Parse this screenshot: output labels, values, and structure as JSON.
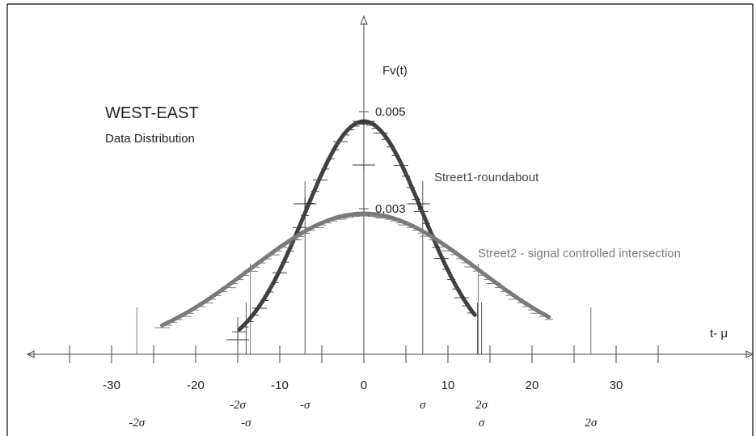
{
  "title": "WEST-EAST",
  "subtitle": "Data Distribution",
  "ylabel": "Fv(t)",
  "xlabel": "t- μ",
  "colors": {
    "frame": "#000000",
    "axis": "#444444",
    "street1": "#404040",
    "street2": "#7a7a7a",
    "text": "#222222"
  },
  "chart_data": {
    "type": "line",
    "xlim": [
      -43,
      46
    ],
    "ylim": [
      -0.0003,
      0.0065
    ],
    "x_ticks": [
      -35,
      -30,
      -25,
      -20,
      -15,
      -10,
      -5,
      0,
      5,
      10,
      15,
      20,
      25,
      30,
      35
    ],
    "x_tick_labels": [
      {
        "x": -30,
        "label": "-30"
      },
      {
        "x": -20,
        "label": "-20"
      },
      {
        "x": -10,
        "label": "-10"
      },
      {
        "x": 0,
        "label": "0"
      },
      {
        "x": 10,
        "label": "10"
      },
      {
        "x": 20,
        "label": "20"
      },
      {
        "x": 30,
        "label": "30"
      }
    ],
    "y_labels": [
      {
        "y": 0.005,
        "label": "0.005"
      },
      {
        "y": 0.003,
        "label": "0,003"
      }
    ],
    "sigma_labels_row1": [
      {
        "x": -15,
        "label": "-2σ"
      },
      {
        "x": -7,
        "label": "-σ"
      },
      {
        "x": 7,
        "label": "σ"
      },
      {
        "x": 14,
        "label": "2σ"
      }
    ],
    "sigma_labels_row2": [
      {
        "x": -27,
        "label": "-2σ"
      },
      {
        "x": -14,
        "label": "-σ"
      },
      {
        "x": 14,
        "label": "σ"
      },
      {
        "x": 27,
        "label": "2σ"
      }
    ],
    "sigma_markers": [
      {
        "x": -15,
        "top": 0.0003,
        "series": 0
      },
      {
        "x": -14,
        "top": 0.0006,
        "series": 0
      },
      {
        "x": -7,
        "top": 0.0031,
        "series": 0
      },
      {
        "x": 7,
        "top": 0.0031,
        "series": 0
      },
      {
        "x": 14,
        "top": 0.0006,
        "series": 0
      },
      {
        "x": 13.5,
        "top": 0.0006,
        "series": 0
      },
      {
        "x": -27,
        "top": 0.0005,
        "series": 1
      },
      {
        "x": -13.5,
        "top": 0.0014,
        "series": 1
      },
      {
        "x": 13.6,
        "top": 0.0014,
        "series": 1
      },
      {
        "x": 27,
        "top": 0.0005,
        "series": 1
      }
    ],
    "series": [
      {
        "name": "Street1-roundabout",
        "mean": 0,
        "sigma": 7,
        "peak": 0.0048,
        "x_range": [
          -14.8,
          13.2
        ]
      },
      {
        "name": "Street2 - signal controlled intersection",
        "mean": 0,
        "sigma": 13.5,
        "peak": 0.0029,
        "x_range": [
          -24,
          22
        ]
      }
    ]
  }
}
